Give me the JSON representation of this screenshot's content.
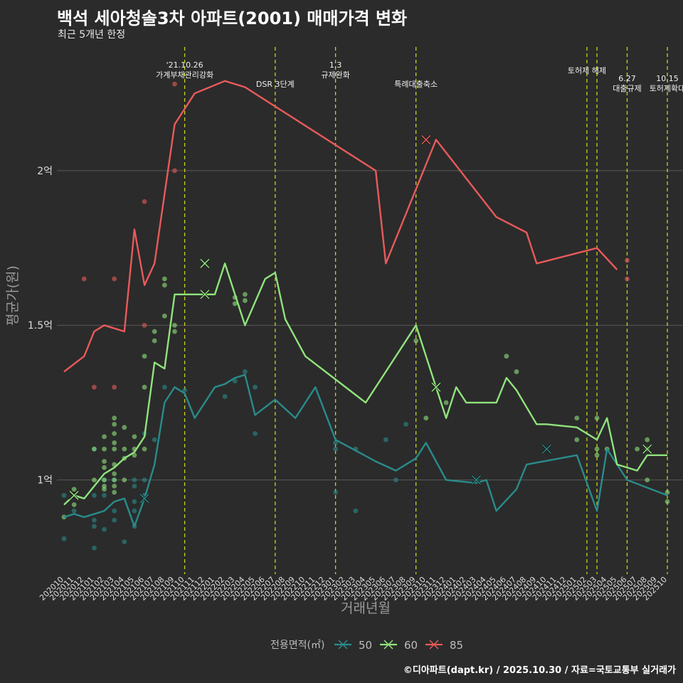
{
  "title": "백석 세아청솔3차 아파트(2001) 매매가격 변화",
  "subtitle": "최근 5개년 한정",
  "footer": "©디아파트(dapt.kr) / 2025.10.30 / 자료=국토교통부 실거래가",
  "colors": {
    "50": "#2a8b8b",
    "60": "#90e37d",
    "85": "#e85a5a",
    "event": "#c8d41e",
    "grid": "#5a5a5a",
    "axisText": "#dddddd"
  },
  "chart_data": {
    "type": "line",
    "xlabel": "거래년월",
    "ylabel": "평균가(원)",
    "ylim": [
      0.7,
      2.4
    ],
    "yticks": [
      {
        "v": 1.0,
        "label": "1억"
      },
      {
        "v": 1.5,
        "label": "1.5억"
      },
      {
        "v": 2.0,
        "label": "2억"
      }
    ],
    "categories": [
      "202010",
      "202011",
      "202012",
      "202101",
      "202102",
      "202103",
      "202104",
      "202105",
      "202106",
      "202107",
      "202108",
      "202109",
      "202110",
      "202111",
      "202112",
      "202201",
      "202202",
      "202203",
      "202204",
      "202205",
      "202206",
      "202207",
      "202208",
      "202209",
      "202210",
      "202211",
      "202212",
      "202301",
      "202302",
      "202303",
      "202304",
      "202305",
      "202306",
      "202307",
      "202308",
      "202309",
      "202310",
      "202311",
      "202312",
      "202401",
      "202402",
      "202403",
      "202404",
      "202405",
      "202406",
      "202407",
      "202408",
      "202409",
      "202410",
      "202411",
      "202412",
      "202501",
      "202502",
      "202503",
      "202504",
      "202505",
      "202506",
      "202507",
      "202508",
      "202509",
      "202510"
    ],
    "legend_title": "전용면적(㎡)",
    "series": [
      {
        "name": "50",
        "points": [
          [
            0,
            0.88
          ],
          [
            1,
            0.89
          ],
          [
            2,
            0.88
          ],
          [
            4,
            0.9
          ],
          [
            5,
            0.93
          ],
          [
            6,
            0.94
          ],
          [
            7,
            0.85
          ],
          [
            8,
            0.94
          ],
          [
            9,
            1.05
          ],
          [
            10,
            1.25
          ],
          [
            11,
            1.3
          ],
          [
            12,
            1.28
          ],
          [
            13,
            1.2
          ],
          [
            15,
            1.3
          ],
          [
            16,
            1.31
          ],
          [
            17,
            1.33
          ],
          [
            18,
            1.34
          ],
          [
            19,
            1.21
          ],
          [
            21,
            1.26
          ],
          [
            23,
            1.2
          ],
          [
            25,
            1.3
          ],
          [
            27,
            1.13
          ],
          [
            31,
            1.06
          ],
          [
            33,
            1.03
          ],
          [
            35,
            1.07
          ],
          [
            36,
            1.12
          ],
          [
            38,
            1.0
          ],
          [
            41,
            0.99
          ],
          [
            42,
            1.0
          ],
          [
            43,
            0.9
          ],
          [
            45,
            0.97
          ],
          [
            46,
            1.05
          ],
          [
            51,
            1.08
          ],
          [
            53,
            0.9
          ],
          [
            54,
            1.1
          ],
          [
            55,
            1.05
          ],
          [
            56,
            1.0
          ],
          [
            60,
            0.95
          ]
        ]
      },
      {
        "name": "60",
        "points": [
          [
            0,
            0.92
          ],
          [
            1,
            0.95
          ],
          [
            2,
            0.94
          ],
          [
            4,
            1.02
          ],
          [
            5,
            1.04
          ],
          [
            6,
            1.07
          ],
          [
            7,
            1.09
          ],
          [
            8,
            1.14
          ],
          [
            9,
            1.38
          ],
          [
            10,
            1.36
          ],
          [
            11,
            1.6
          ],
          [
            15,
            1.6
          ],
          [
            16,
            1.7
          ],
          [
            18,
            1.5
          ],
          [
            20,
            1.65
          ],
          [
            21,
            1.67
          ],
          [
            22,
            1.52
          ],
          [
            24,
            1.4
          ],
          [
            30,
            1.25
          ],
          [
            35,
            1.5
          ],
          [
            37,
            1.3
          ],
          [
            38,
            1.2
          ],
          [
            39,
            1.3
          ],
          [
            40,
            1.25
          ],
          [
            42,
            1.25
          ],
          [
            43,
            1.25
          ],
          [
            44,
            1.33
          ],
          [
            45,
            1.29
          ],
          [
            47,
            1.18
          ],
          [
            48,
            1.18
          ],
          [
            51,
            1.17
          ],
          [
            53,
            1.13
          ],
          [
            54,
            1.2
          ],
          [
            55,
            1.05
          ],
          [
            57,
            1.03
          ],
          [
            58,
            1.08
          ],
          [
            60,
            1.08
          ]
        ]
      },
      {
        "name": "85",
        "points": [
          [
            0,
            1.35
          ],
          [
            2,
            1.4
          ],
          [
            3,
            1.48
          ],
          [
            4,
            1.5
          ],
          [
            6,
            1.48
          ],
          [
            7,
            1.81
          ],
          [
            8,
            1.63
          ],
          [
            9,
            1.7
          ],
          [
            11,
            2.15
          ],
          [
            13,
            2.25
          ],
          [
            16,
            2.29
          ],
          [
            18,
            2.27
          ],
          [
            31,
            2.0
          ],
          [
            32,
            1.7
          ],
          [
            37,
            2.1
          ],
          [
            43,
            1.85
          ],
          [
            46,
            1.8
          ],
          [
            47,
            1.7
          ],
          [
            53,
            1.75
          ],
          [
            55,
            1.68
          ]
        ]
      }
    ],
    "scatter": [
      {
        "name": "50",
        "points": [
          [
            0,
            0.95
          ],
          [
            0,
            0.81
          ],
          [
            1,
            0.9
          ],
          [
            3,
            1.1
          ],
          [
            3,
            0.95
          ],
          [
            3,
            0.87
          ],
          [
            3,
            0.85
          ],
          [
            3,
            0.78
          ],
          [
            4,
            1.0
          ],
          [
            4,
            0.95
          ],
          [
            4,
            0.84
          ],
          [
            5,
            1.0
          ],
          [
            5,
            0.9
          ],
          [
            5,
            0.87
          ],
          [
            6,
            0.8
          ],
          [
            7,
            1.0
          ],
          [
            7,
            0.98
          ],
          [
            7,
            0.93
          ],
          [
            7,
            0.9
          ],
          [
            7,
            0.85
          ],
          [
            8,
            1.15
          ],
          [
            8,
            1.0
          ],
          [
            8,
            0.95
          ],
          [
            9,
            1.13
          ],
          [
            10,
            1.3
          ],
          [
            12,
            1.29
          ],
          [
            16,
            1.27
          ],
          [
            17,
            1.32
          ],
          [
            18,
            1.35
          ],
          [
            19,
            1.3
          ],
          [
            19,
            1.15
          ],
          [
            27,
            1.12
          ],
          [
            27,
            1.1
          ],
          [
            27,
            0.96
          ],
          [
            29,
            1.1
          ],
          [
            29,
            0.9
          ],
          [
            32,
            1.13
          ],
          [
            33,
            1.0
          ],
          [
            34,
            1.18
          ],
          [
            41,
            1.0
          ]
        ]
      },
      {
        "name": "60",
        "points": [
          [
            0,
            0.88
          ],
          [
            1,
            0.97
          ],
          [
            1,
            0.92
          ],
          [
            3,
            1.1
          ],
          [
            3,
            1.0
          ],
          [
            4,
            1.14
          ],
          [
            4,
            1.1
          ],
          [
            4,
            1.06
          ],
          [
            4,
            1.04
          ],
          [
            4,
            1.0
          ],
          [
            4,
            0.98
          ],
          [
            4,
            0.97
          ],
          [
            5,
            1.2
          ],
          [
            5,
            1.18
          ],
          [
            5,
            1.15
          ],
          [
            5,
            1.12
          ],
          [
            5,
            1.1
          ],
          [
            5,
            1.05
          ],
          [
            5,
            1.02
          ],
          [
            5,
            1.0
          ],
          [
            5,
            0.98
          ],
          [
            5,
            0.96
          ],
          [
            6,
            1.17
          ],
          [
            6,
            1.1
          ],
          [
            6,
            1.07
          ],
          [
            6,
            1.0
          ],
          [
            7,
            1.14
          ],
          [
            7,
            1.1
          ],
          [
            7,
            1.08
          ],
          [
            8,
            1.4
          ],
          [
            8,
            1.3
          ],
          [
            8,
            1.1
          ],
          [
            9,
            1.48
          ],
          [
            9,
            1.45
          ],
          [
            10,
            1.65
          ],
          [
            10,
            1.63
          ],
          [
            10,
            1.53
          ],
          [
            11,
            1.5
          ],
          [
            11,
            1.48
          ],
          [
            17,
            1.59
          ],
          [
            17,
            1.57
          ],
          [
            18,
            1.6
          ],
          [
            18,
            1.58
          ],
          [
            35,
            1.45
          ],
          [
            36,
            1.2
          ],
          [
            38,
            1.25
          ],
          [
            44,
            1.4
          ],
          [
            45,
            1.35
          ],
          [
            51,
            1.2
          ],
          [
            51,
            1.13
          ],
          [
            53,
            1.2
          ],
          [
            53,
            1.1
          ],
          [
            53,
            1.08
          ],
          [
            54,
            1.1
          ],
          [
            57,
            1.1
          ],
          [
            58,
            1.13
          ],
          [
            58,
            1.1
          ],
          [
            58,
            1.0
          ],
          [
            60,
            0.96
          ],
          [
            60,
            0.93
          ]
        ]
      },
      {
        "name": "85",
        "points": [
          [
            2,
            1.65
          ],
          [
            3,
            1.3
          ],
          [
            5,
            1.65
          ],
          [
            5,
            1.3
          ],
          [
            8,
            1.9
          ],
          [
            8,
            1.5
          ],
          [
            11,
            2.28
          ],
          [
            11,
            2.0
          ],
          [
            56,
            1.71
          ],
          [
            56,
            1.65
          ]
        ]
      }
    ],
    "crosses": [
      {
        "name": "50",
        "points": [
          [
            8,
            0.94
          ],
          [
            41,
            1.0
          ],
          [
            48,
            1.1
          ]
        ]
      },
      {
        "name": "60",
        "points": [
          [
            1,
            0.95
          ],
          [
            14,
            1.7
          ],
          [
            14,
            1.6
          ],
          [
            37,
            1.3
          ],
          [
            58,
            1.1
          ]
        ]
      },
      {
        "name": "85",
        "points": [
          [
            36,
            2.1
          ]
        ]
      }
    ],
    "events": [
      {
        "x": 12,
        "lines": [
          "'21.10.26",
          "가계부채관리강화"
        ],
        "row": 0
      },
      {
        "x": 21,
        "lines": [
          "DSR 3단계"
        ],
        "row": 2
      },
      {
        "x": 27,
        "lines": [
          "1.3",
          "규제완화"
        ],
        "row": 0
      },
      {
        "x": 35,
        "lines": [
          "특례대출축소"
        ],
        "row": 2
      },
      {
        "x": 52,
        "lines": [
          "토허제 해제"
        ],
        "row": 1
      },
      {
        "x": 53,
        "lines": [],
        "row": 1
      },
      {
        "x": 56,
        "lines": [
          "6.27",
          "대출규제"
        ],
        "row": 1.5
      },
      {
        "x": 60,
        "lines": [
          "10.15",
          "토허제확대"
        ],
        "row": 1.5
      }
    ]
  }
}
